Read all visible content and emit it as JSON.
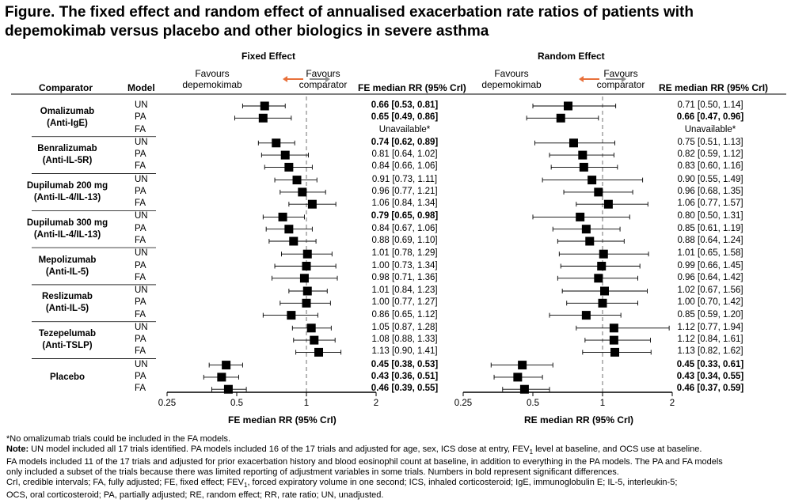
{
  "title": "Figure. The fixed effect and random effect of annualised exacerbation rate ratios of patients with depemokimab versus placebo and other biologics in severe asthma",
  "headers": {
    "fixed_effect": "Fixed Effect",
    "random_effect": "Random Effect",
    "comparator": "Comparator",
    "model": "Model",
    "fe_col": "FE median RR (95% CrI)",
    "re_col": "RE median RR (95% CrI)",
    "favours_depemokimab": "Favours depemokimab",
    "favours_comparator": "Favours comparator"
  },
  "colors": {
    "left_arrow": "#e8703a",
    "right_arrow": "#8c8c8c",
    "marker": "#000000",
    "ref_line": "#999999"
  },
  "chart_data": [
    {
      "type": "forest",
      "panel": "Fixed Effect",
      "xlabel": "FE median RR (95% CrI)",
      "x_scale": "log",
      "xlim": [
        0.25,
        2
      ],
      "xticks": [
        "0.25",
        "0.5",
        "1",
        "2"
      ],
      "reference_line": 1
    },
    {
      "type": "forest",
      "panel": "Random Effect",
      "xlabel": "RE median RR (95% CrI)",
      "x_scale": "log",
      "xlim": [
        0.25,
        2
      ],
      "xticks": [
        "0.25",
        "0.5",
        "1",
        "2"
      ],
      "reference_line": 1
    }
  ],
  "groups": [
    {
      "name": "Omalizumab",
      "sub": "(Anti-IgE)",
      "rows": [
        {
          "model": "UN",
          "fe": [
            0.66,
            0.53,
            0.81
          ],
          "fe_text": "0.66 [0.53, 0.81]",
          "fe_bold": true,
          "re": [
            0.71,
            0.5,
            1.14
          ],
          "re_text": "0.71 [0.50, 1.14]",
          "re_bold": false
        },
        {
          "model": "PA",
          "fe": [
            0.65,
            0.49,
            0.86
          ],
          "fe_text": "0.65 [0.49, 0.86]",
          "fe_bold": true,
          "re": [
            0.66,
            0.47,
            0.96
          ],
          "re_text": "0.66 [0.47, 0.96]",
          "re_bold": true
        },
        {
          "model": "FA",
          "fe": null,
          "fe_text": "Unavailable*",
          "fe_bold": false,
          "re": null,
          "re_text": "Unavailable*",
          "re_bold": false
        }
      ]
    },
    {
      "name": "Benralizumab",
      "sub": "(Anti-IL-5R)",
      "rows": [
        {
          "model": "UN",
          "fe": [
            0.74,
            0.62,
            0.89
          ],
          "fe_text": "0.74 [0.62, 0.89]",
          "fe_bold": true,
          "re": [
            0.75,
            0.51,
            1.13
          ],
          "re_text": "0.75 [0.51, 1.13]",
          "re_bold": false
        },
        {
          "model": "PA",
          "fe": [
            0.81,
            0.64,
            1.02
          ],
          "fe_text": "0.81 [0.64, 1.02]",
          "fe_bold": false,
          "re": [
            0.82,
            0.59,
            1.12
          ],
          "re_text": "0.82 [0.59, 1.12]",
          "re_bold": false
        },
        {
          "model": "FA",
          "fe": [
            0.84,
            0.66,
            1.06
          ],
          "fe_text": "0.84 [0.66, 1.06]",
          "fe_bold": false,
          "re": [
            0.83,
            0.6,
            1.16
          ],
          "re_text": "0.83 [0.60, 1.16]",
          "re_bold": false
        }
      ]
    },
    {
      "name": "Dupilumab 200 mg",
      "sub": "(Anti-IL-4/IL-13)",
      "rows": [
        {
          "model": "UN",
          "fe": [
            0.91,
            0.73,
            1.11
          ],
          "fe_text": "0.91 [0.73, 1.11]",
          "fe_bold": false,
          "re": [
            0.9,
            0.55,
            1.49
          ],
          "re_text": "0.90 [0.55, 1.49]",
          "re_bold": false
        },
        {
          "model": "PA",
          "fe": [
            0.96,
            0.77,
            1.21
          ],
          "fe_text": "0.96 [0.77, 1.21]",
          "fe_bold": false,
          "re": [
            0.96,
            0.68,
            1.35
          ],
          "re_text": "0.96 [0.68, 1.35]",
          "re_bold": false
        },
        {
          "model": "FA",
          "fe": [
            1.06,
            0.84,
            1.34
          ],
          "fe_text": "1.06 [0.84, 1.34]",
          "fe_bold": false,
          "re": [
            1.06,
            0.77,
            1.57
          ],
          "re_text": "1.06 [0.77, 1.57]",
          "re_bold": false
        }
      ]
    },
    {
      "name": "Dupilumab 300 mg",
      "sub": "(Anti-IL-4/IL-13)",
      "rows": [
        {
          "model": "UN",
          "fe": [
            0.79,
            0.65,
            0.98
          ],
          "fe_text": "0.79 [0.65, 0.98]",
          "fe_bold": true,
          "re": [
            0.8,
            0.5,
            1.31
          ],
          "re_text": "0.80 [0.50, 1.31]",
          "re_bold": false
        },
        {
          "model": "PA",
          "fe": [
            0.84,
            0.67,
            1.06
          ],
          "fe_text": "0.84 [0.67, 1.06]",
          "fe_bold": false,
          "re": [
            0.85,
            0.61,
            1.19
          ],
          "re_text": "0.85 [0.61, 1.19]",
          "re_bold": false
        },
        {
          "model": "FA",
          "fe": [
            0.88,
            0.69,
            1.1
          ],
          "fe_text": "0.88 [0.69, 1.10]",
          "fe_bold": false,
          "re": [
            0.88,
            0.64,
            1.24
          ],
          "re_text": "0.88 [0.64, 1.24]",
          "re_bold": false
        }
      ]
    },
    {
      "name": "Mepolizumab",
      "sub": "(Anti-IL-5)",
      "rows": [
        {
          "model": "UN",
          "fe": [
            1.01,
            0.78,
            1.29
          ],
          "fe_text": "1.01 [0.78, 1.29]",
          "fe_bold": false,
          "re": [
            1.01,
            0.65,
            1.58
          ],
          "re_text": "1.01 [0.65, 1.58]",
          "re_bold": false
        },
        {
          "model": "PA",
          "fe": [
            1.0,
            0.73,
            1.34
          ],
          "fe_text": "1.00 [0.73, 1.34]",
          "fe_bold": false,
          "re": [
            0.99,
            0.66,
            1.45
          ],
          "re_text": "0.99 [0.66, 1.45]",
          "re_bold": false
        },
        {
          "model": "FA",
          "fe": [
            0.98,
            0.71,
            1.36
          ],
          "fe_text": "0.98 [0.71, 1.36]",
          "fe_bold": false,
          "re": [
            0.96,
            0.64,
            1.42
          ],
          "re_text": "0.96 [0.64, 1.42]",
          "re_bold": false
        }
      ]
    },
    {
      "name": "Reslizumab",
      "sub": "(Anti-IL-5)",
      "rows": [
        {
          "model": "UN",
          "fe": [
            1.01,
            0.84,
            1.23
          ],
          "fe_text": "1.01 [0.84, 1.23]",
          "fe_bold": false,
          "re": [
            1.02,
            0.67,
            1.56
          ],
          "re_text": "1.02 [0.67, 1.56]",
          "re_bold": false
        },
        {
          "model": "PA",
          "fe": [
            1.0,
            0.77,
            1.27
          ],
          "fe_text": "1.00 [0.77, 1.27]",
          "fe_bold": false,
          "re": [
            1.0,
            0.7,
            1.42
          ],
          "re_text": "1.00 [0.70, 1.42]",
          "re_bold": false
        },
        {
          "model": "FA",
          "fe": [
            0.86,
            0.65,
            1.12
          ],
          "fe_text": "0.86 [0.65, 1.12]",
          "fe_bold": false,
          "re": [
            0.85,
            0.59,
            1.2
          ],
          "re_text": "0.85 [0.59, 1.20]",
          "re_bold": false
        }
      ]
    },
    {
      "name": "Tezepelumab",
      "sub": "(Anti-TSLP)",
      "rows": [
        {
          "model": "UN",
          "fe": [
            1.05,
            0.87,
            1.28
          ],
          "fe_text": "1.05 [0.87, 1.28]",
          "fe_bold": false,
          "re": [
            1.12,
            0.77,
            1.94
          ],
          "re_text": "1.12 [0.77, 1.94]",
          "re_bold": false
        },
        {
          "model": "PA",
          "fe": [
            1.08,
            0.88,
            1.33
          ],
          "fe_text": "1.08 [0.88, 1.33]",
          "fe_bold": false,
          "re": [
            1.12,
            0.84,
            1.61
          ],
          "re_text": "1.12 [0.84, 1.61]",
          "re_bold": false
        },
        {
          "model": "FA",
          "fe": [
            1.13,
            0.9,
            1.41
          ],
          "fe_text": "1.13 [0.90, 1.41]",
          "fe_bold": false,
          "re": [
            1.13,
            0.82,
            1.62
          ],
          "re_text": "1.13 [0.82, 1.62]",
          "re_bold": false
        }
      ]
    },
    {
      "name": "Placebo",
      "sub": "",
      "rows": [
        {
          "model": "UN",
          "fe": [
            0.45,
            0.38,
            0.53
          ],
          "fe_text": "0.45 [0.38, 0.53]",
          "fe_bold": true,
          "re": [
            0.45,
            0.33,
            0.61
          ],
          "re_text": "0.45 [0.33, 0.61]",
          "re_bold": true
        },
        {
          "model": "PA",
          "fe": [
            0.43,
            0.36,
            0.51
          ],
          "fe_text": "0.43 [0.36, 0.51]",
          "fe_bold": true,
          "re": [
            0.43,
            0.34,
            0.55
          ],
          "re_text": "0.43 [0.34, 0.55]",
          "re_bold": true
        },
        {
          "model": "FA",
          "fe": [
            0.46,
            0.39,
            0.55
          ],
          "fe_text": "0.46 [0.39, 0.55]",
          "fe_bold": true,
          "re": [
            0.46,
            0.37,
            0.59
          ],
          "re_text": "0.46 [0.37, 0.59]",
          "re_bold": true
        }
      ]
    }
  ],
  "notes": {
    "n1": "*No omalizumab trials could be included in the FA models.",
    "n2_label": "Note:",
    "n2": " UN model included all 17 trials identified. PA models included 16 of the 17 trials and adjusted for age, sex, ICS dose at entry, FEV",
    "n2_sub": "1",
    "n2b": " level at baseline, and OCS use at baseline.",
    "n3": "FA models included 11 of the 17 trials and adjusted for prior exacerbation history and blood eosinophil count at baseline, in addition to everything in the PA models. The PA and FA models",
    "n4": "only included a subset of the trials because there was limited reporting of adjustment variables in some trials. Numbers in bold represent significant differences.",
    "n5a": "CrI, credible intervals; FA, fully adjusted; FE, fixed effect; FEV",
    "n5_sub": "1",
    "n5b": ", forced expiratory volume in one second; ICS, inhaled corticosteroid; IgE, immunoglobulin E; IL-5, interleukin-5;",
    "n6": "OCS, oral corticosteroid; PA, partially adjusted; RE, random effect; RR, rate ratio; UN, unadjusted."
  }
}
